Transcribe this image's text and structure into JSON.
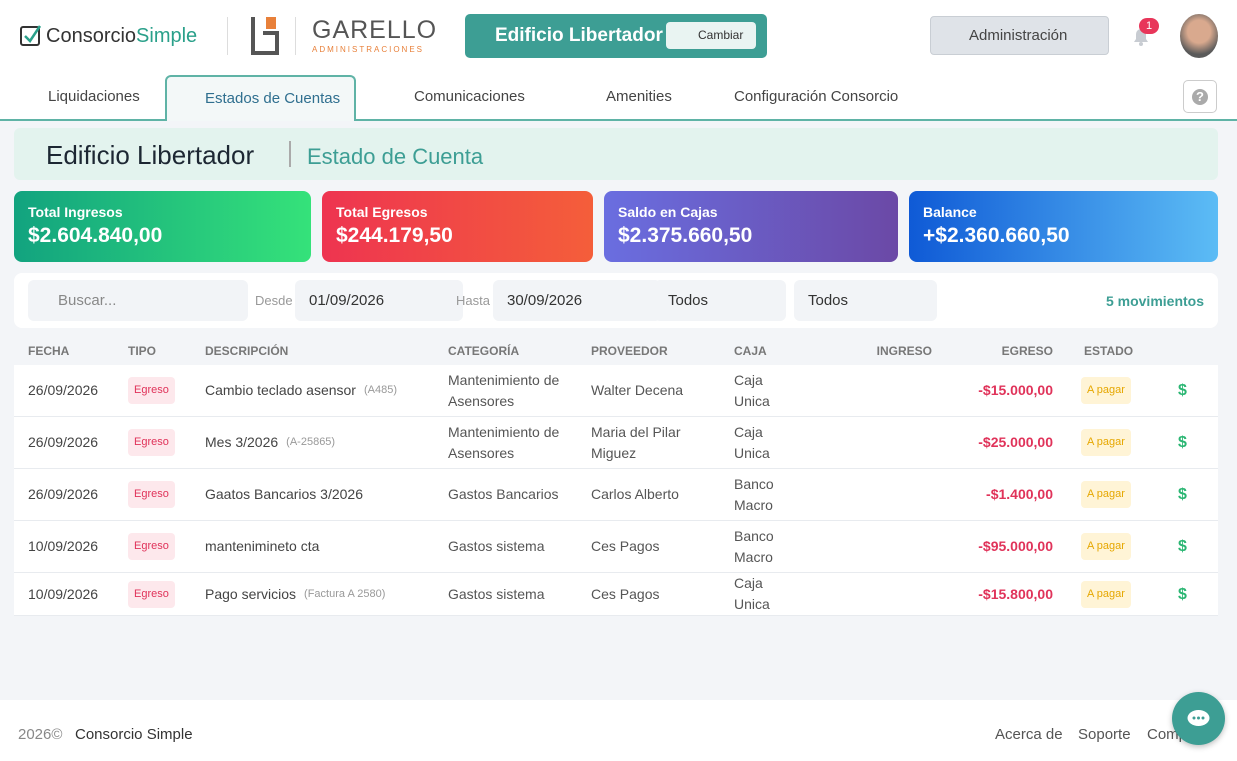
{
  "header": {
    "logo": {
      "part1": "Consorcio",
      "part2": "Simple"
    },
    "company": {
      "name": "GARELLO",
      "sub": "ADMINISTRACIONES"
    },
    "building": "Edificio Libertador",
    "switch": "Cambiar",
    "menu": "Administración",
    "notifications": "1"
  },
  "nav": {
    "tabs": [
      "Liquidaciones",
      "Estados de Cuentas",
      "Comunicaciones",
      "Amenities",
      "Configuración Consorcio"
    ],
    "help": "?"
  },
  "page_header": {
    "title": "Edificio Libertador",
    "subtitle": "Estado de Cuenta"
  },
  "cards": [
    {
      "label": "Total Ingresos",
      "value": "$2.604.840,00"
    },
    {
      "label": "Total Egresos",
      "value": "$244.179,50"
    },
    {
      "label": "Saldo en Cajas",
      "value": "$2.375.660,50"
    },
    {
      "label": "Balance",
      "value": "+$2.360.660,50"
    }
  ],
  "filters": {
    "search": "Buscar...",
    "from_label": "Desde",
    "from": "01/09/2026",
    "to_label": "Hasta",
    "to": "30/09/2026",
    "select1": "Todos",
    "select2": "Todos",
    "count": "5 movimientos"
  },
  "table": {
    "headers": [
      "FECHA",
      "TIPO",
      "DESCRIPCIÓN",
      "CATEGORÍA",
      "PROVEEDOR",
      "CAJA",
      "INGRESO",
      "EGRESO",
      "ESTADO"
    ],
    "rows": [
      {
        "fecha": "26/09/2026",
        "tipo": "Egreso",
        "descripcion": "Cambio teclado asensor",
        "ref": "(A485)",
        "categoria": "Mantenimiento de Asensores",
        "proveedor": "Walter Decena",
        "caja": "Caja Unica",
        "egreso": "-$15.000,00",
        "estado": "A pagar",
        "action": "$"
      },
      {
        "fecha": "26/09/2026",
        "tipo": "Egreso",
        "descripcion": "Mes 3/2026",
        "ref": "(A-25865)",
        "categoria": "Mantenimiento de Asensores",
        "proveedor": "Maria del Pilar Miguez",
        "caja": "Caja Unica",
        "egreso": "-$25.000,00",
        "estado": "A pagar",
        "action": "$"
      },
      {
        "fecha": "26/09/2026",
        "tipo": "Egreso",
        "descripcion": "Gaatos Bancarios 3/2026",
        "categoria": "Gastos Bancarios",
        "proveedor": "Carlos Alberto",
        "caja": "Banco Macro",
        "egreso": "-$1.400,00",
        "estado": "A pagar",
        "action": "$"
      },
      {
        "fecha": "10/09/2026",
        "tipo": "Egreso",
        "descripcion": "mantenimineto cta",
        "categoria": "Gastos sistema",
        "proveedor": "Ces Pagos",
        "caja": "Banco Macro",
        "egreso": "-$95.000,00",
        "estado": "A pagar",
        "action": "$"
      },
      {
        "fecha": "10/09/2026",
        "tipo": "Egreso",
        "descripcion": "Pago servicios",
        "ref": "(Factura A 2580)",
        "categoria": "Gastos sistema",
        "proveedor": "Ces Pagos",
        "caja": "Caja Unica",
        "egreso": "-$15.800,00",
        "estado": "A pagar",
        "action": "$"
      }
    ]
  },
  "footer": {
    "year": "2026©",
    "brand": "Consorcio Simple",
    "links": [
      "Acerca de",
      "Soporte",
      "Comp"
    ]
  }
}
